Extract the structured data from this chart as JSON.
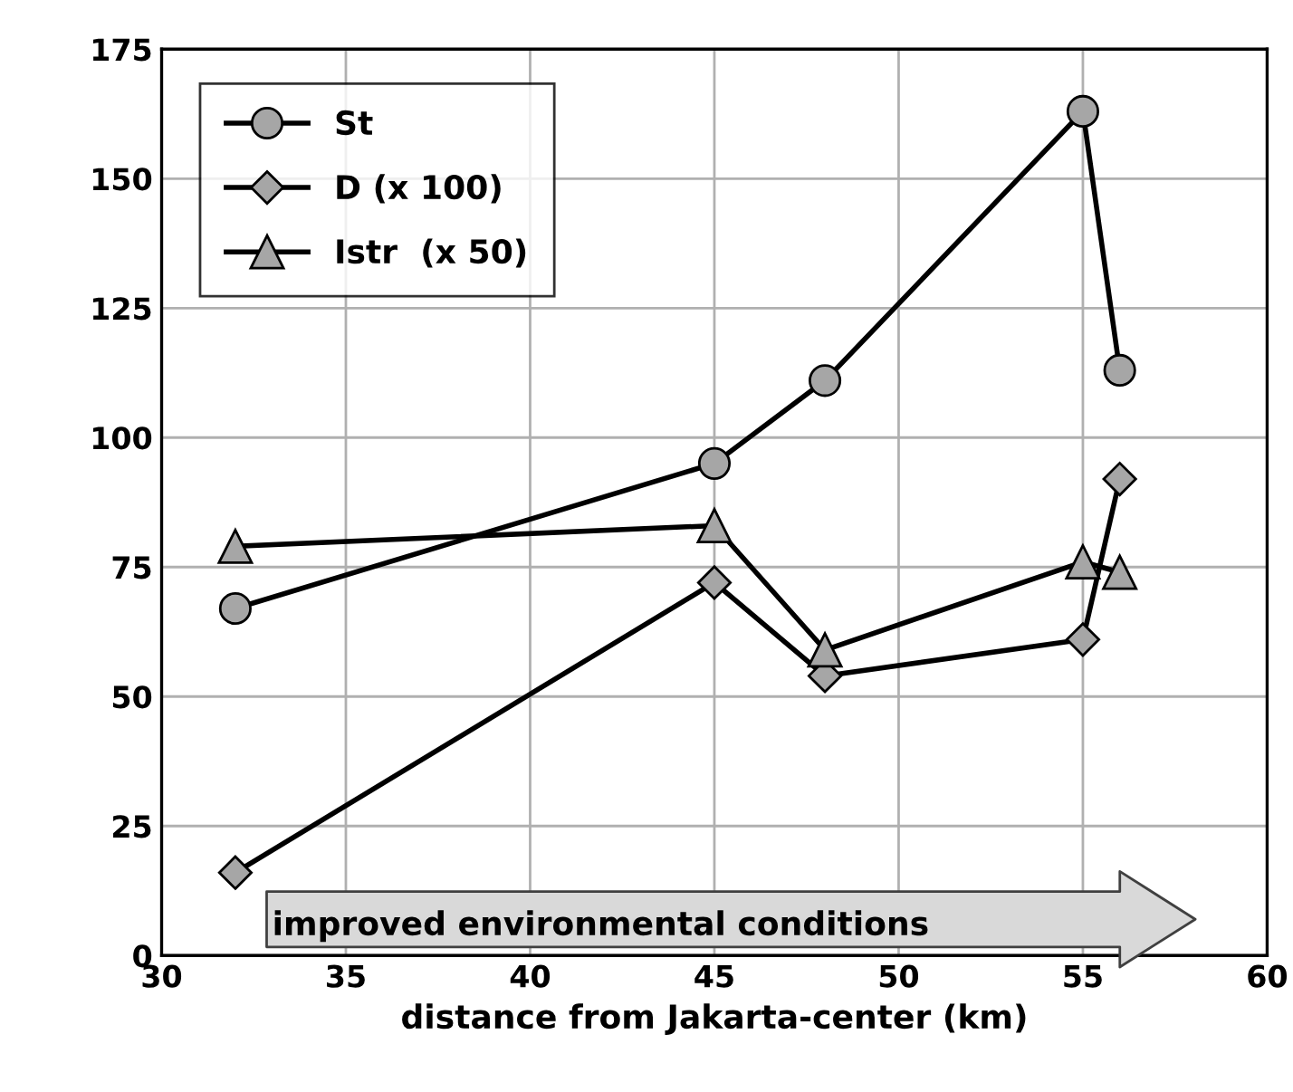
{
  "chart_data": {
    "type": "line",
    "xlabel": "distance from Jakarta-center (km)",
    "x": [
      32,
      45,
      48,
      55,
      56
    ],
    "series": [
      {
        "name": "St",
        "color": "#a6a6a6",
        "marker": "circle",
        "values": [
          67,
          95,
          111,
          163,
          113
        ]
      },
      {
        "name": "D (x 100)",
        "color": "#a6a6a6",
        "marker": "diamond",
        "values": [
          16,
          72,
          54,
          61,
          92
        ]
      },
      {
        "name": "Istr  (x 50)",
        "color": "#a6a6a6",
        "marker": "triangle",
        "values": [
          79,
          83,
          59,
          76,
          74
        ]
      }
    ],
    "xlim": [
      30,
      60
    ],
    "xticks": [
      30,
      35,
      40,
      45,
      50,
      55,
      60
    ],
    "ylim": [
      0,
      175
    ],
    "yticks": [
      0,
      25,
      50,
      75,
      100,
      125,
      150,
      175
    ],
    "grid": true,
    "legend": "top left",
    "annotations": [
      "improved environmental conditions"
    ]
  }
}
